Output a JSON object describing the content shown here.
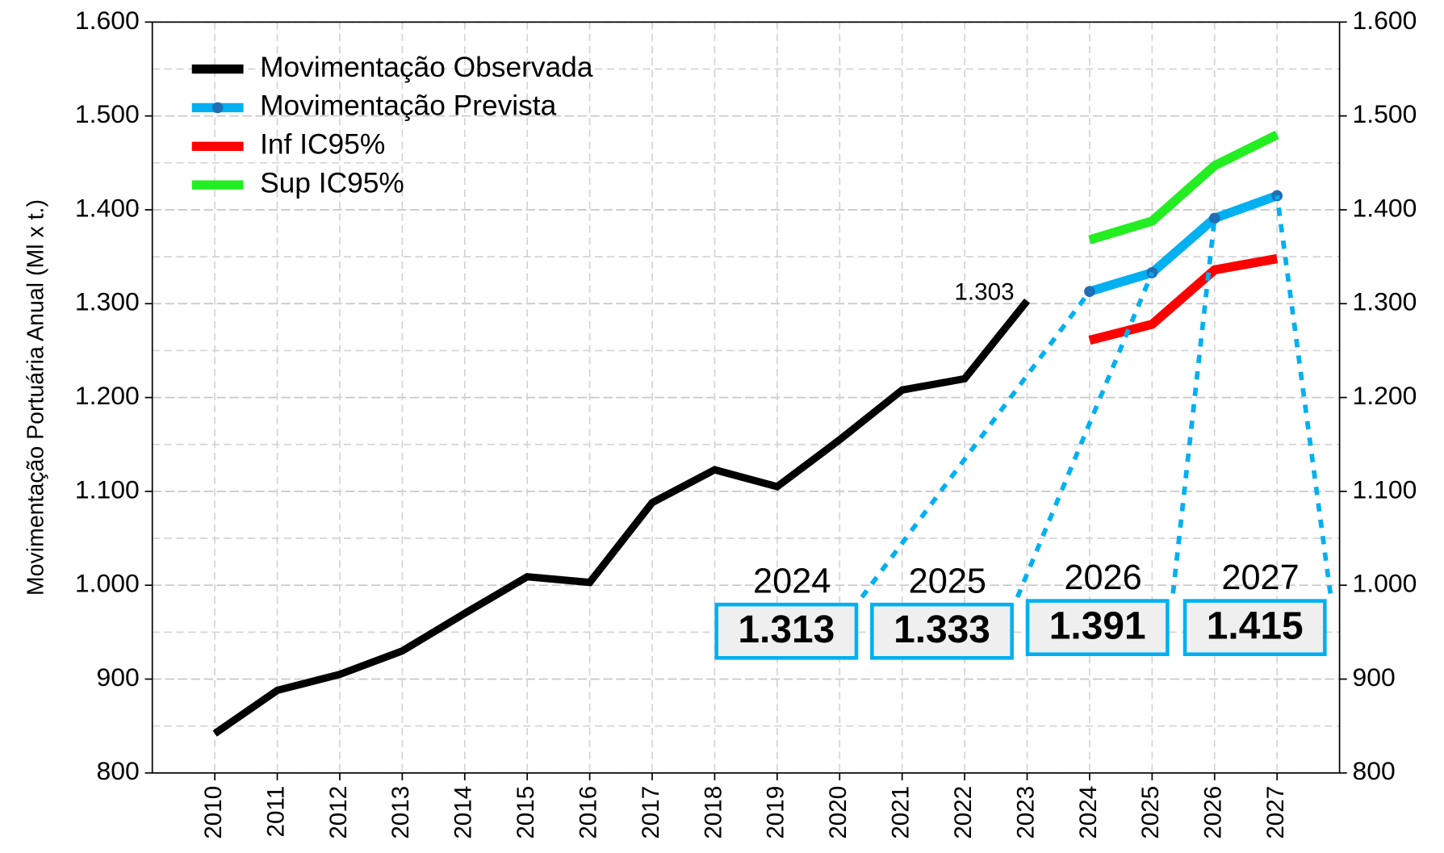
{
  "chart_data": {
    "type": "line",
    "y_label": "Movimentação Portuária Anual (Ml x t.)",
    "categories": [
      "2010",
      "2011",
      "2012",
      "2013",
      "2014",
      "2015",
      "2016",
      "2017",
      "2018",
      "2019",
      "2020",
      "2021",
      "2022",
      "2023",
      "2024",
      "2025",
      "2026",
      "2027"
    ],
    "series": [
      {
        "name": "Movimentação Observada",
        "color": "#000000",
        "values": [
          842,
          888,
          905,
          930,
          970,
          1009,
          1003,
          1088,
          1123,
          1105,
          1155,
          1208,
          1220,
          1303,
          null,
          null,
          null,
          null
        ],
        "value_labels": [
          null,
          null,
          null,
          null,
          null,
          null,
          null,
          null,
          null,
          null,
          null,
          null,
          null,
          "1.303",
          null,
          null,
          null,
          null
        ]
      },
      {
        "name": "Movimentação Prevista",
        "color": "#00b0f0",
        "marker_color": "#1f6fb5",
        "values": [
          null,
          null,
          null,
          null,
          null,
          null,
          null,
          null,
          null,
          null,
          null,
          null,
          null,
          null,
          1313,
          1333,
          1391,
          1415
        ],
        "value_labels": [
          null,
          null,
          null,
          null,
          null,
          null,
          null,
          null,
          null,
          null,
          null,
          null,
          null,
          null,
          "1.313",
          "1.333",
          "1.391",
          "1.415"
        ]
      },
      {
        "name": "Inf IC95%",
        "color": "#ff0000",
        "values": [
          null,
          null,
          null,
          null,
          null,
          null,
          null,
          null,
          null,
          null,
          null,
          null,
          null,
          null,
          1261,
          1278,
          1336,
          1348
        ]
      },
      {
        "name": "Sup IC95%",
        "color": "#22ee22",
        "values": [
          null,
          null,
          null,
          null,
          null,
          null,
          null,
          null,
          null,
          null,
          null,
          null,
          null,
          null,
          1368,
          1388,
          1447,
          1480
        ]
      }
    ],
    "ylim": [
      800,
      1600
    ],
    "yticks": [
      800,
      900,
      {
        "value": 1000,
        "label": "1.000"
      },
      {
        "value": 1100,
        "label": "1.100"
      },
      {
        "value": 1200,
        "label": "1.200"
      },
      {
        "value": 1300,
        "label": "1.300"
      },
      {
        "value": 1400,
        "label": "1.400"
      },
      {
        "value": 1500,
        "label": "1.500"
      },
      {
        "value": 1600,
        "label": "1.600"
      }
    ],
    "y2ticks_mirrored": true,
    "grid": true,
    "legend": "upper left"
  }
}
